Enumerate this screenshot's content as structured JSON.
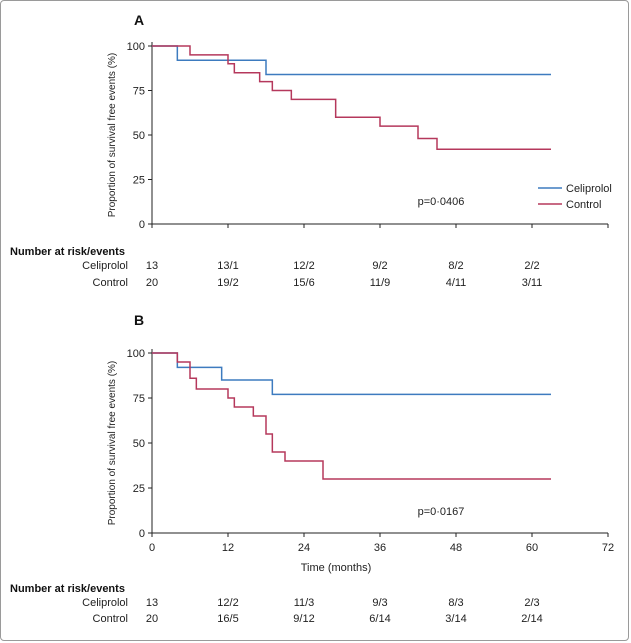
{
  "colors": {
    "celiprolol": "#3d7bbf",
    "control": "#b5385c",
    "axis": "#222222"
  },
  "chart_data": [
    {
      "type": "line",
      "panel_label": "A",
      "ylabel": "Proportion of survival free events (%)",
      "xlabel": "",
      "xlim": [
        0,
        72
      ],
      "ylim": [
        0,
        100
      ],
      "yticks": [
        0,
        25,
        50,
        75,
        100
      ],
      "xticks": [],
      "p_value": "p=0·0406",
      "legend": [
        "Celiprolol",
        "Control"
      ],
      "series": [
        {
          "name": "Celiprolol",
          "color": "#3d7bbf",
          "steps": [
            [
              0,
              100
            ],
            [
              4,
              92
            ],
            [
              18,
              84
            ],
            [
              63,
              84
            ]
          ]
        },
        {
          "name": "Control",
          "color": "#b5385c",
          "steps": [
            [
              0,
              100
            ],
            [
              6,
              95
            ],
            [
              12,
              90
            ],
            [
              13,
              85
            ],
            [
              17,
              80
            ],
            [
              19,
              75
            ],
            [
              22,
              70
            ],
            [
              29,
              60
            ],
            [
              36,
              55
            ],
            [
              39,
              55
            ],
            [
              42,
              48
            ],
            [
              45,
              42
            ],
            [
              63,
              42
            ]
          ]
        }
      ],
      "risk_table": {
        "title": "Number at risk/events",
        "rows": [
          {
            "label": "Celiprolol",
            "values": [
              "13",
              "13/1",
              "12/2",
              "9/2",
              "8/2",
              "2/2"
            ]
          },
          {
            "label": "Control",
            "values": [
              "20",
              "19/2",
              "15/6",
              "11/9",
              "4/11",
              "3/11"
            ]
          }
        ]
      }
    },
    {
      "type": "line",
      "panel_label": "B",
      "ylabel": "Proportion of survival free events (%)",
      "xlabel": "Time (months)",
      "xlim": [
        0,
        72
      ],
      "ylim": [
        0,
        100
      ],
      "yticks": [
        0,
        25,
        50,
        75,
        100
      ],
      "xticks": [
        0,
        12,
        24,
        36,
        48,
        60,
        72
      ],
      "p_value": "p=0·0167",
      "series": [
        {
          "name": "Celiprolol",
          "color": "#3d7bbf",
          "steps": [
            [
              0,
              100
            ],
            [
              4,
              92
            ],
            [
              11,
              85
            ],
            [
              19,
              77
            ],
            [
              63,
              77
            ]
          ]
        },
        {
          "name": "Control",
          "color": "#b5385c",
          "steps": [
            [
              0,
              100
            ],
            [
              4,
              95
            ],
            [
              6,
              86
            ],
            [
              7,
              80
            ],
            [
              12,
              75
            ],
            [
              13,
              70
            ],
            [
              16,
              65
            ],
            [
              18,
              55
            ],
            [
              19,
              45
            ],
            [
              21,
              40
            ],
            [
              27,
              30
            ],
            [
              63,
              30
            ]
          ]
        }
      ],
      "risk_table": {
        "title": "Number at risk/events",
        "rows": [
          {
            "label": "Celiprolol",
            "values": [
              "13",
              "12/2",
              "11/3",
              "9/3",
              "8/3",
              "2/3"
            ]
          },
          {
            "label": "Control",
            "values": [
              "20",
              "16/5",
              "9/12",
              "6/14",
              "3/14",
              "2/14"
            ]
          }
        ]
      }
    }
  ]
}
